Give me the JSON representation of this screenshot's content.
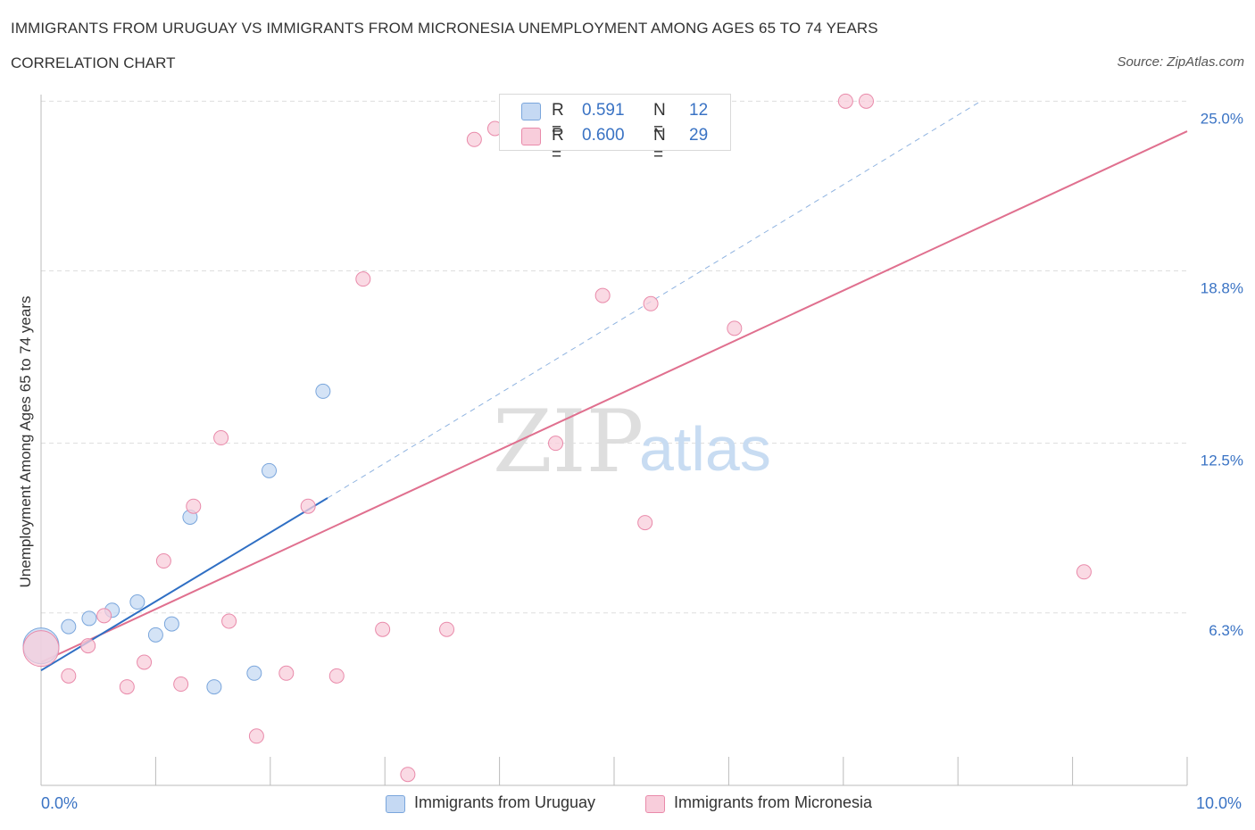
{
  "title": "IMMIGRANTS FROM URUGUAY VS IMMIGRANTS FROM MICRONESIA UNEMPLOYMENT AMONG AGES 65 TO 74 YEARS",
  "subtitle": "CORRELATION CHART",
  "source": "Source: ZipAtlas.com",
  "watermark": {
    "part1": "ZIP",
    "part2": "atlas"
  },
  "colors": {
    "uruguay_fill": "#c5d9f3",
    "uruguay_stroke": "#7aa6dc",
    "uruguay_line": "#2f6fc4",
    "micronesia_fill": "#f8cddb",
    "micronesia_stroke": "#e98aaa",
    "micronesia_line": "#e0708f",
    "tick_text": "#3a73c4",
    "grid": "#dddddd"
  },
  "legend": {
    "rows": [
      {
        "r_label": "R =",
        "r_value": "0.591",
        "n_label": "N =",
        "n_value": "12"
      },
      {
        "r_label": "R =",
        "r_value": "0.600",
        "n_label": "N =",
        "n_value": "29"
      }
    ]
  },
  "chart_data": {
    "type": "scatter",
    "title": "IMMIGRANTS FROM URUGUAY VS IMMIGRANTS FROM MICRONESIA UNEMPLOYMENT AMONG AGES 65 TO 74 YEARS",
    "subtitle": "CORRELATION CHART",
    "xlabel": "",
    "ylabel": "Unemployment Among Ages 65 to 74 years",
    "xlim": [
      0,
      10
    ],
    "ylim": [
      0,
      25.5
    ],
    "x_tick_labels": [
      "0.0%",
      "10.0%"
    ],
    "y_ticks": [
      6.3,
      12.5,
      18.8,
      25.0
    ],
    "y_tick_labels": [
      "6.3%",
      "12.5%",
      "18.8%",
      "25.0%"
    ],
    "grid": true,
    "legend_position": "top-center",
    "series": [
      {
        "name": "Immigrants from Uruguay",
        "R": 0.591,
        "N": 12,
        "points": [
          {
            "x": 0.0,
            "y": 5.1,
            "size": "large"
          },
          {
            "x": 0.24,
            "y": 5.8
          },
          {
            "x": 0.42,
            "y": 6.1
          },
          {
            "x": 0.62,
            "y": 6.4
          },
          {
            "x": 0.84,
            "y": 6.7
          },
          {
            "x": 1.0,
            "y": 5.5
          },
          {
            "x": 1.14,
            "y": 5.9
          },
          {
            "x": 1.3,
            "y": 9.8
          },
          {
            "x": 1.51,
            "y": 3.6
          },
          {
            "x": 1.86,
            "y": 4.1
          },
          {
            "x": 1.99,
            "y": 11.5
          },
          {
            "x": 2.46,
            "y": 14.4
          }
        ],
        "trend": {
          "x0": 0.0,
          "y0": 4.2,
          "x1": 2.5,
          "y1": 10.5
        },
        "trend_extension": {
          "x0": 2.5,
          "y0": 10.5,
          "x1": 8.2,
          "y1": 25.0
        }
      },
      {
        "name": "Immigrants from Micronesia",
        "R": 0.6,
        "N": 29,
        "points": [
          {
            "x": 0.0,
            "y": 5.0,
            "size": "large"
          },
          {
            "x": 0.24,
            "y": 4.0
          },
          {
            "x": 0.41,
            "y": 5.1
          },
          {
            "x": 0.55,
            "y": 6.2
          },
          {
            "x": 0.75,
            "y": 3.6
          },
          {
            "x": 0.9,
            "y": 4.5
          },
          {
            "x": 1.07,
            "y": 8.2
          },
          {
            "x": 1.22,
            "y": 3.7
          },
          {
            "x": 1.33,
            "y": 10.2
          },
          {
            "x": 1.57,
            "y": 12.7
          },
          {
            "x": 1.64,
            "y": 6.0
          },
          {
            "x": 1.88,
            "y": 1.8
          },
          {
            "x": 2.14,
            "y": 4.1
          },
          {
            "x": 2.33,
            "y": 10.2
          },
          {
            "x": 2.58,
            "y": 4.0
          },
          {
            "x": 2.81,
            "y": 18.5
          },
          {
            "x": 2.98,
            "y": 5.7
          },
          {
            "x": 3.2,
            "y": 0.4
          },
          {
            "x": 3.54,
            "y": 5.7
          },
          {
            "x": 3.78,
            "y": 23.6
          },
          {
            "x": 3.96,
            "y": 24.0
          },
          {
            "x": 4.49,
            "y": 12.5
          },
          {
            "x": 4.9,
            "y": 17.9
          },
          {
            "x": 5.27,
            "y": 9.6
          },
          {
            "x": 5.32,
            "y": 17.6
          },
          {
            "x": 6.05,
            "y": 16.7
          },
          {
            "x": 7.02,
            "y": 25.0
          },
          {
            "x": 7.2,
            "y": 25.0
          },
          {
            "x": 9.1,
            "y": 7.8
          }
        ],
        "trend": {
          "x0": 0.0,
          "y0": 4.5,
          "x1": 10.0,
          "y1": 23.9
        }
      }
    ]
  },
  "bottom_legend": {
    "items": [
      {
        "label": "Immigrants from Uruguay"
      },
      {
        "label": "Immigrants from Micronesia"
      }
    ]
  }
}
